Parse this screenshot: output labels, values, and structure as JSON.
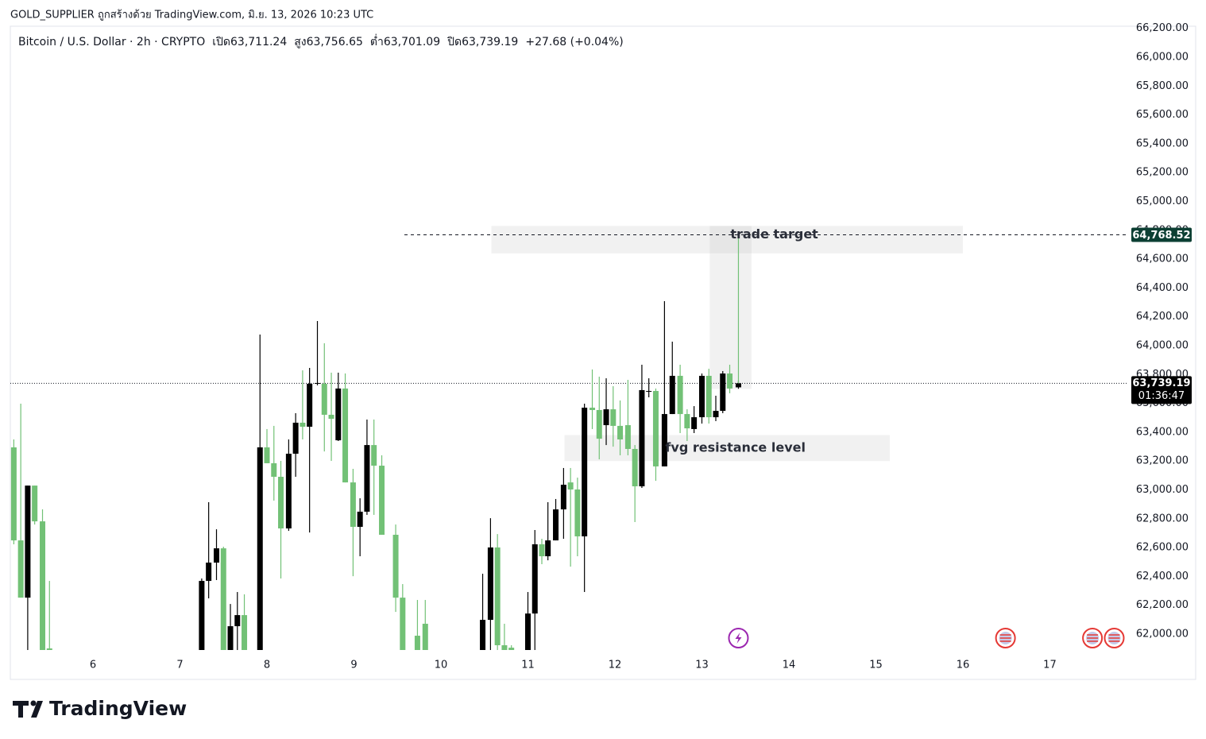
{
  "header": {
    "caption": "GOLD_SUPPLIER ถูกสร้างด้วย TradingView.com, มิ.ย. 13, 2026 10:23 UTC",
    "logo": "TradingView"
  },
  "chart_data": {
    "type": "candlestick",
    "legend": [
      "Bitcoin / U.S. Dollar · 2h · CRYPTO",
      "เปิด63,711.24",
      "สูง63,756.65",
      "ต่ำ63,701.09",
      "ปิด63,739.19",
      "+27.68 (+0.04%)"
    ],
    "up_color": "#000000",
    "down_color": "#72c176",
    "x": [
      5.09,
      5.17,
      5.25,
      5.33,
      5.42,
      5.5,
      7.25,
      7.33,
      7.42,
      7.5,
      7.58,
      7.66,
      7.74,
      7.92,
      8.0,
      8.08,
      8.16,
      8.25,
      8.33,
      8.41,
      8.49,
      8.58,
      8.66,
      8.74,
      8.82,
      8.9,
      8.99,
      9.07,
      9.15,
      9.23,
      9.32,
      9.48,
      9.56,
      9.73,
      9.82,
      10.48,
      10.57,
      10.65,
      10.73,
      10.81,
      11.0,
      11.08,
      11.16,
      11.23,
      11.32,
      11.41,
      11.49,
      11.57,
      11.65,
      11.74,
      11.82,
      11.9,
      11.98,
      12.06,
      12.15,
      12.23,
      12.31,
      12.39,
      12.47,
      12.57,
      12.66,
      12.75,
      12.83,
      12.91,
      13.0,
      13.08,
      13.16,
      13.24,
      13.32,
      13.42
    ],
    "open": [
      63295,
      62650,
      62253,
      63030,
      62782,
      61901,
      61890,
      62369,
      62496,
      62595,
      61890,
      62055,
      62132,
      61890,
      63295,
      63185,
      63091,
      62733,
      63251,
      63466,
      63438,
      63736,
      63736,
      63521,
      63344,
      63703,
      63052,
      62744,
      62849,
      63311,
      63168,
      62689,
      62253,
      61989,
      62072,
      61890,
      62099,
      62601,
      61923,
      61906,
      61890,
      62143,
      62623,
      62540,
      62650,
      62865,
      63052,
      63003,
      62678,
      63570,
      63554,
      63449,
      63559,
      63444,
      63449,
      63284,
      63025,
      63681,
      63686,
      63163,
      63526,
      63791,
      63526,
      63422,
      63504,
      63791,
      63504,
      63548,
      63807,
      63711.24
    ],
    "high": [
      63350,
      63598,
      63030,
      63030,
      62865,
      62369,
      62386,
      62915,
      62727,
      62606,
      62209,
      62292,
      62276,
      64077,
      63422,
      63444,
      63201,
      63350,
      63532,
      63829,
      63846,
      64171,
      64017,
      63813,
      63813,
      63807,
      63146,
      62942,
      63488,
      63488,
      63240,
      62760,
      62347,
      62237,
      62237,
      62419,
      62804,
      62694,
      62072,
      61923,
      62292,
      62722,
      62661,
      62915,
      62937,
      63152,
      63152,
      63085,
      63598,
      63835,
      63785,
      63774,
      63719,
      63620,
      63763,
      63311,
      63868,
      63774,
      63703,
      64309,
      64028,
      63868,
      63559,
      63581,
      63807,
      63840,
      63653,
      63824,
      63868,
      63756.65
    ],
    "low": [
      62623,
      62253,
      61850,
      62760,
      61850,
      61850,
      61850,
      62248,
      62375,
      61850,
      61850,
      61850,
      61850,
      61850,
      63185,
      62926,
      62386,
      62716,
      63091,
      63350,
      62705,
      63725,
      63267,
      63201,
      63339,
      63052,
      62402,
      62540,
      62827,
      62827,
      62689,
      62154,
      61850,
      61850,
      61850,
      61850,
      61850,
      61850,
      61850,
      61850,
      61850,
      61850,
      62485,
      62512,
      62650,
      62661,
      62468,
      62540,
      62292,
      63422,
      63212,
      63311,
      63300,
      63240,
      63240,
      62777,
      63014,
      63642,
      63063,
      63163,
      63526,
      63394,
      63339,
      63394,
      63460,
      63460,
      63477,
      63532,
      63670,
      63701.09
    ],
    "close": [
      62650,
      62253,
      63030,
      62782,
      61890,
      61890,
      62369,
      62496,
      62595,
      61890,
      62055,
      62132,
      61890,
      63295,
      63185,
      63091,
      62733,
      63251,
      63466,
      63438,
      63736,
      63741,
      63521,
      63493,
      63703,
      63052,
      62744,
      62849,
      63311,
      63168,
      62689,
      62253,
      61890,
      61890,
      61890,
      62099,
      62601,
      61923,
      61890,
      61890,
      62143,
      62623,
      62540,
      62650,
      62865,
      63036,
      63003,
      62678,
      63570,
      63554,
      63355,
      63559,
      63444,
      63350,
      63284,
      63025,
      63692,
      63686,
      63163,
      63526,
      63791,
      63526,
      63427,
      63504,
      63791,
      63504,
      63548,
      63807,
      63703,
      63739.19
    ],
    "xlim": [
      5.05,
      17.9
    ],
    "xticks": [
      6,
      7,
      8,
      9,
      10,
      11,
      12,
      13,
      14,
      15,
      16,
      17
    ],
    "ylim": [
      61890,
      66204
    ],
    "yticks": [
      {
        "value": 62000,
        "label": "62,000.00"
      },
      {
        "value": 62200,
        "label": "62,200.00"
      },
      {
        "value": 62400,
        "label": "62,400.00"
      },
      {
        "value": 62600,
        "label": "62,600.00"
      },
      {
        "value": 62800,
        "label": "62,800.00"
      },
      {
        "value": 63000,
        "label": "63,000.00"
      },
      {
        "value": 63200,
        "label": "63,200.00"
      },
      {
        "value": 63400,
        "label": "63,400.00"
      },
      {
        "value": 63600,
        "label": "63,600.00"
      },
      {
        "value": 63800,
        "label": "63,800.00"
      },
      {
        "value": 64000,
        "label": "64,000.00"
      },
      {
        "value": 64200,
        "label": "64,200.00"
      },
      {
        "value": 64400,
        "label": "64,400.00"
      },
      {
        "value": 64600,
        "label": "64,600.00"
      },
      {
        "value": 64800,
        "label": "64,800.00"
      },
      {
        "value": 65000,
        "label": "65,000.00"
      },
      {
        "value": 65200,
        "label": "65,200.00"
      },
      {
        "value": 65400,
        "label": "65,400.00"
      },
      {
        "value": 65600,
        "label": "65,600.00"
      },
      {
        "value": 65800,
        "label": "65,800.00"
      },
      {
        "value": 66000,
        "label": "66,000.00"
      },
      {
        "value": 66200,
        "label": "66,200.00"
      }
    ],
    "zones": [
      {
        "label": "trade target",
        "x": [
          10.58,
          16.0
        ],
        "y": [
          64640,
          64830
        ]
      },
      {
        "label": "fvg resistance level",
        "x": [
          11.42,
          15.16
        ],
        "y": [
          63200,
          63380
        ]
      },
      {
        "x": [
          13.09,
          13.57
        ],
        "y": [
          63700,
          64830
        ]
      }
    ],
    "target": {
      "value": 64768.52,
      "label": "64,768.52",
      "x_start": 9.58,
      "color": "#0c3f33"
    },
    "last_price": {
      "value": 63739.19,
      "label": "63,739.19",
      "countdown": "01:36:47"
    },
    "events": [
      {
        "x": 13.42,
        "color": "#9c27b0"
      },
      {
        "x": 16.49,
        "color": "#e53935"
      },
      {
        "x": 17.49,
        "color": "#e53935"
      },
      {
        "x": 17.74,
        "color": "#e53935"
      }
    ]
  }
}
